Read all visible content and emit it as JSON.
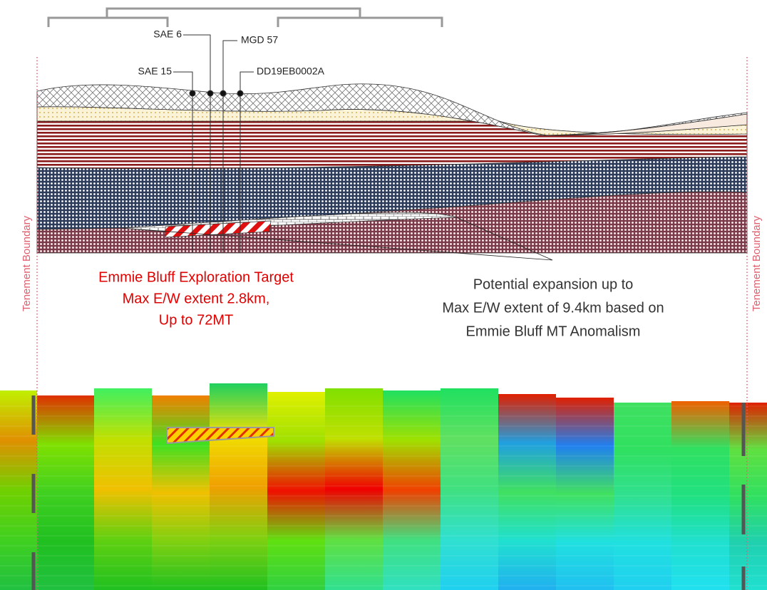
{
  "drill_holes": [
    "SAE 6",
    "MGD 57",
    "SAE 15",
    "DD19EB0002A"
  ],
  "target": {
    "lines": [
      "Emmie Bluff Exploration Target",
      "Max E/W extent 2.8km,",
      "Up to 72MT"
    ]
  },
  "expansion": {
    "lines": [
      "Potential expansion up to",
      "Max E/W extent of 9.4km based on",
      "Emmie Bluff MT Anomalism"
    ]
  },
  "boundary": {
    "left": "Tenement Boundary",
    "right": "Tenement Boundary"
  }
}
